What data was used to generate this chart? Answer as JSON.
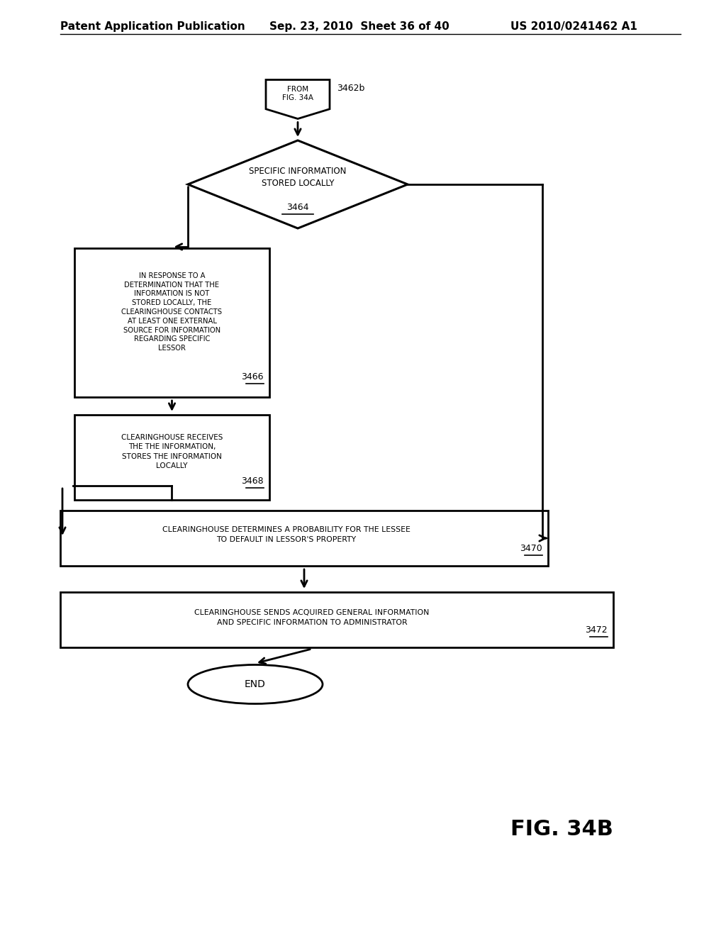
{
  "background_color": "#ffffff",
  "header_left": "Patent Application Publication",
  "header_center": "Sep. 23, 2010  Sheet 36 of 40",
  "header_right": "US 2010/0241462 A1",
  "header_fontsize": 11,
  "fig_label": "FIG. 34B",
  "fig_label_fontsize": 22,
  "connector_label": "3462b",
  "connector_text": "FROM\nFIG. 34A",
  "diamond_text_main": "SPECIFIC INFORMATION\nSTORED LOCALLY",
  "diamond_ref": "3464",
  "box1_text": "IN RESPONSE TO A\nDETERMINATION THAT THE\nINFORMATION IS NOT\nSTORED LOCALLY, THE\nCLEARINGHOUSE CONTACTS\nAT LEAST ONE EXTERNAL\nSOURCE FOR INFORMATION\nREGARDING SPECIFIC\nLESSOR",
  "box1_ref": "3466",
  "box2_text": "CLEARINGHOUSE RECEIVES\nTHE THE INFORMATION,\nSTORES THE INFORMATION\nLOCALLY",
  "box2_ref": "3468",
  "box3_text": "CLEARINGHOUSE DETERMINES A PROBABILITY FOR THE LESSEE\nTO DEFAULT IN LESSOR'S PROPERTY",
  "box3_ref": "3470",
  "box4_text": "CLEARINGHOUSE SENDS ACQUIRED GENERAL INFORMATION\nAND SPECIFIC INFORMATION TO ADMINISTRATOR",
  "box4_ref": "3472",
  "end_text": "END",
  "flow_color": "#000000",
  "box_color": "#000000",
  "text_color": "#000000"
}
